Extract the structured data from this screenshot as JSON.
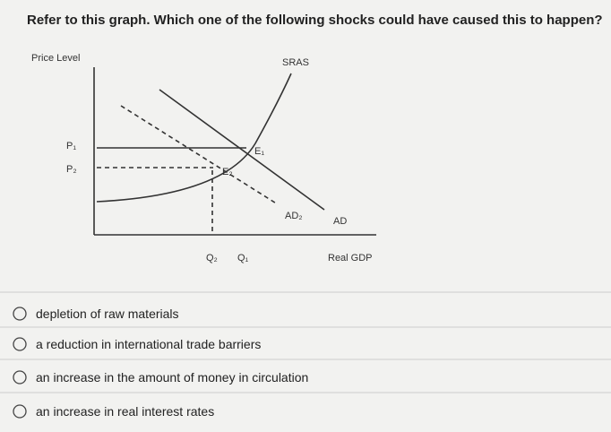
{
  "question": "Refer to this graph. Which one of the following shocks could have caused this to happen?",
  "graph": {
    "y_axis_label": "Price Level",
    "x_axis_label": "Real GDP",
    "curves": {
      "sras": "SRAS",
      "ad": "AD",
      "ad2": "AD₂"
    },
    "prices": {
      "p1": "P₁",
      "p2": "P₂"
    },
    "equilibria": {
      "e1": "E₁",
      "e2": "E₂"
    },
    "quantities": {
      "q2": "Q₂",
      "q1": "Q₁"
    }
  },
  "options": [
    "depletion of raw materials",
    "a reduction in international trade barriers",
    "an increase in the amount of money in circulation",
    "an increase in real interest rates"
  ]
}
